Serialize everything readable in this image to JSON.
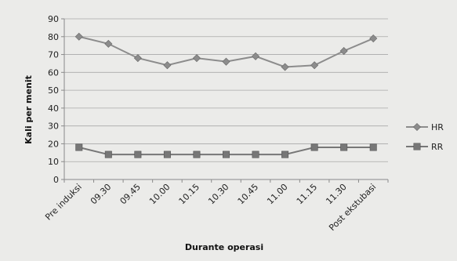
{
  "chart_data": {
    "type": "line",
    "categories": [
      "Pre induksi",
      "09.30",
      "09.45",
      "10.00",
      "10.15",
      "10.30",
      "10.45",
      "11.00",
      "11.15",
      "11.30",
      "Post ekstubasi"
    ],
    "series": [
      {
        "name": "HR",
        "values": [
          80,
          76,
          68,
          64,
          68,
          66,
          69,
          63,
          64,
          72,
          79
        ],
        "color": "#8c8c8c",
        "marker": "diamond"
      },
      {
        "name": "RR",
        "values": [
          18,
          14,
          14,
          14,
          14,
          14,
          14,
          14,
          18,
          18,
          18
        ],
        "color": "#777777",
        "marker": "square"
      }
    ],
    "xlabel": "Durante operasi",
    "ylabel": "Kali per menit",
    "ylim": [
      0,
      90
    ],
    "yticks": [
      0,
      10,
      20,
      30,
      40,
      50,
      60,
      70,
      80,
      90
    ],
    "grid": true,
    "legend": "right"
  }
}
